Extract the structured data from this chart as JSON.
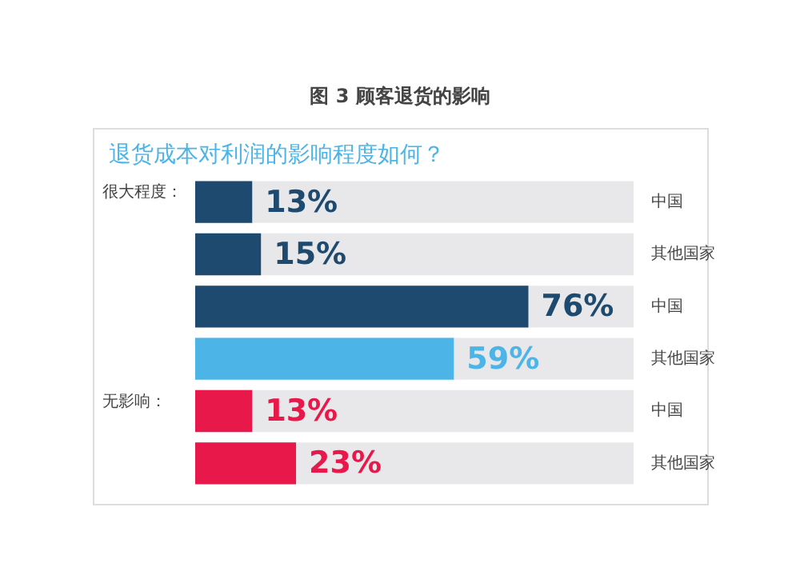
{
  "chart_data": {
    "type": "bar",
    "orientation": "horizontal",
    "title": "图 3 顾客退货的影响",
    "subtitle": "退货成本对利润的影响程度如何？",
    "categories": [
      "中国",
      "其他国家",
      "中国",
      "其他国家",
      "中国",
      "其他国家"
    ],
    "values": [
      13,
      15,
      76,
      59,
      13,
      23
    ],
    "colors": [
      "#1d4a6e",
      "#1d4a6e",
      "#1d4a6e",
      "#4cb4e6",
      "#e8194a",
      "#e8194a"
    ],
    "value_labels": [
      "13%",
      "15%",
      "76%",
      "59%",
      "13%",
      "23%"
    ],
    "xlim": [
      0,
      100
    ],
    "tick_labels": "y",
    "grid": false,
    "legend": false,
    "annotations": [
      "很大程度：",
      "无影响："
    ]
  }
}
